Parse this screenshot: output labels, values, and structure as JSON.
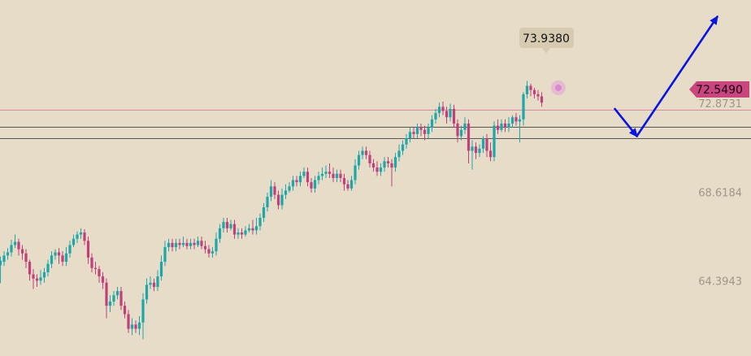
{
  "chart_data": {
    "type": "candlestick",
    "title": "",
    "xlabel": "",
    "ylabel": "",
    "ylim": [
      60.8,
      77.8
    ],
    "y_ticks": [
      "72.8731",
      "68.6184",
      "64.3943"
    ],
    "current_price": "72.5490",
    "high_label": "73.9380",
    "horizontal_lines": [
      {
        "value": 72.55,
        "color": "#d98aa3"
      },
      {
        "value": 71.75,
        "color": "#555555"
      },
      {
        "value": 71.2,
        "color": "#555555"
      }
    ],
    "projection": {
      "color": "#0a14e0",
      "points": [
        [
          168,
          72.6
        ],
        [
          174,
          71.3
        ],
        [
          196,
          77.0
        ]
      ]
    },
    "colors": {
      "up": "#1ea7a8",
      "down": "#c0407a"
    },
    "candles": [
      [
        0,
        65.13,
        65.35,
        65.55,
        64.28
      ],
      [
        1,
        65.3,
        65.6,
        65.8,
        65.1
      ],
      [
        2,
        65.6,
        65.75,
        65.95,
        65.4
      ],
      [
        3,
        65.75,
        66.1,
        66.35,
        65.55
      ],
      [
        4,
        66.1,
        66.25,
        66.6,
        65.95
      ],
      [
        5,
        66.25,
        65.9,
        66.4,
        65.6
      ],
      [
        6,
        65.9,
        65.7,
        66.1,
        65.4
      ],
      [
        7,
        65.7,
        65.3,
        65.9,
        65.0
      ],
      [
        8,
        65.3,
        64.7,
        65.4,
        64.4
      ],
      [
        9,
        64.7,
        64.5,
        64.95,
        64.0
      ],
      [
        10,
        64.5,
        64.4,
        64.7,
        64.1
      ],
      [
        11,
        64.4,
        64.55,
        64.9,
        64.2
      ],
      [
        12,
        64.55,
        64.8,
        65.0,
        64.3
      ],
      [
        13,
        64.8,
        65.2,
        65.4,
        64.6
      ],
      [
        14,
        65.2,
        65.6,
        65.8,
        65.0
      ],
      [
        15,
        65.6,
        65.75,
        65.9,
        65.4
      ],
      [
        16,
        65.75,
        65.6,
        65.95,
        65.2
      ],
      [
        17,
        65.6,
        65.3,
        65.8,
        65.1
      ],
      [
        18,
        65.3,
        65.7,
        66.0,
        65.1
      ],
      [
        19,
        65.7,
        66.1,
        66.3,
        65.5
      ],
      [
        20,
        66.1,
        66.4,
        66.6,
        66.0
      ],
      [
        21,
        66.4,
        66.6,
        66.75,
        66.2
      ],
      [
        22,
        66.6,
        66.7,
        66.9,
        66.4
      ],
      [
        23,
        66.7,
        66.3,
        66.85,
        66.1
      ],
      [
        24,
        66.3,
        65.5,
        66.5,
        65.2
      ],
      [
        25,
        65.5,
        65.0,
        65.7,
        64.8
      ],
      [
        26,
        65.0,
        64.95,
        65.3,
        64.7
      ],
      [
        27,
        64.95,
        64.6,
        65.1,
        64.3
      ],
      [
        28,
        64.6,
        64.3,
        64.8,
        64.0
      ],
      [
        29,
        64.3,
        63.2,
        64.5,
        62.6
      ],
      [
        30,
        63.2,
        63.4,
        63.7,
        62.9
      ],
      [
        31,
        63.4,
        63.7,
        63.9,
        63.2
      ],
      [
        32,
        63.7,
        63.9,
        64.1,
        63.5
      ],
      [
        33,
        63.9,
        63.2,
        64.1,
        63.0
      ],
      [
        34,
        63.2,
        62.8,
        63.4,
        62.6
      ],
      [
        35,
        62.8,
        62.1,
        63.0,
        61.9
      ],
      [
        36,
        62.1,
        62.3,
        62.6,
        61.8
      ],
      [
        37,
        62.3,
        62.1,
        62.5,
        61.9
      ],
      [
        38,
        62.1,
        62.4,
        62.7,
        61.8
      ],
      [
        39,
        62.4,
        63.5,
        63.8,
        61.6
      ],
      [
        40,
        63.5,
        64.2,
        64.5,
        63.3
      ],
      [
        41,
        64.2,
        64.3,
        64.6,
        64.0
      ],
      [
        42,
        64.3,
        64.1,
        64.5,
        63.9
      ],
      [
        43,
        64.1,
        64.6,
        64.9,
        63.9
      ],
      [
        44,
        64.6,
        65.3,
        65.6,
        64.4
      ],
      [
        45,
        65.3,
        66.0,
        66.3,
        65.1
      ],
      [
        46,
        66.0,
        66.2,
        66.4,
        65.8
      ],
      [
        47,
        66.2,
        66.0,
        66.4,
        65.8
      ],
      [
        48,
        66.0,
        66.2,
        66.4,
        65.8
      ],
      [
        49,
        66.2,
        66.1,
        66.4,
        65.9
      ],
      [
        50,
        66.1,
        66.2,
        66.5,
        66.0
      ],
      [
        51,
        66.2,
        66.05,
        66.4,
        65.9
      ],
      [
        52,
        66.05,
        66.2,
        66.4,
        65.9
      ],
      [
        53,
        66.2,
        66.1,
        66.4,
        65.9
      ],
      [
        54,
        66.1,
        66.3,
        66.5,
        66.0
      ],
      [
        55,
        66.3,
        66.05,
        66.5,
        65.9
      ],
      [
        56,
        66.05,
        65.9,
        66.3,
        65.7
      ],
      [
        57,
        65.9,
        65.7,
        66.1,
        65.5
      ],
      [
        58,
        65.7,
        65.8,
        66.0,
        65.5
      ],
      [
        59,
        65.8,
        66.4,
        66.7,
        65.6
      ],
      [
        60,
        66.4,
        66.9,
        67.1,
        66.2
      ],
      [
        61,
        66.9,
        67.2,
        67.4,
        66.7
      ],
      [
        62,
        67.2,
        66.9,
        67.4,
        66.7
      ],
      [
        63,
        66.9,
        67.1,
        67.3,
        66.8
      ],
      [
        64,
        67.1,
        66.6,
        67.3,
        66.4
      ],
      [
        65,
        66.6,
        66.7,
        66.9,
        66.4
      ],
      [
        66,
        66.7,
        66.6,
        66.9,
        66.4
      ],
      [
        67,
        66.6,
        66.8,
        67.0,
        66.5
      ],
      [
        68,
        66.8,
        66.9,
        67.1,
        66.7
      ],
      [
        69,
        66.9,
        66.8,
        67.3,
        66.6
      ],
      [
        70,
        66.8,
        67.0,
        67.4,
        66.6
      ],
      [
        71,
        67.0,
        67.4,
        67.6,
        66.8
      ],
      [
        72,
        67.4,
        67.9,
        68.1,
        67.2
      ],
      [
        73,
        67.9,
        68.4,
        68.6,
        67.7
      ],
      [
        74,
        68.4,
        68.9,
        69.2,
        68.2
      ],
      [
        75,
        68.9,
        68.5,
        69.1,
        68.3
      ],
      [
        76,
        68.5,
        68.0,
        68.7,
        67.8
      ],
      [
        77,
        68.0,
        68.5,
        68.8,
        67.8
      ],
      [
        78,
        68.5,
        68.7,
        69.0,
        68.3
      ],
      [
        79,
        68.7,
        68.9,
        69.1,
        68.6
      ],
      [
        80,
        68.9,
        69.2,
        69.4,
        68.7
      ],
      [
        81,
        69.2,
        69.1,
        69.4,
        68.9
      ],
      [
        82,
        69.1,
        69.4,
        69.6,
        68.9
      ],
      [
        83,
        69.4,
        69.6,
        69.8,
        69.3
      ],
      [
        84,
        69.6,
        69.1,
        69.8,
        68.9
      ],
      [
        85,
        69.1,
        68.8,
        69.3,
        68.6
      ],
      [
        86,
        68.8,
        69.2,
        69.4,
        68.6
      ],
      [
        87,
        69.2,
        69.4,
        69.6,
        69.0
      ],
      [
        88,
        69.4,
        69.5,
        69.8,
        69.2
      ],
      [
        89,
        69.5,
        69.6,
        69.9,
        69.3
      ],
      [
        90,
        69.6,
        69.5,
        70.0,
        69.3
      ],
      [
        91,
        69.5,
        69.3,
        69.8,
        69.1
      ],
      [
        92,
        69.3,
        69.5,
        69.7,
        69.1
      ],
      [
        93,
        69.5,
        69.3,
        69.7,
        69.1
      ],
      [
        94,
        69.3,
        69.0,
        69.5,
        68.7
      ],
      [
        95,
        69.0,
        68.8,
        69.2,
        68.7
      ],
      [
        96,
        68.8,
        69.2,
        69.4,
        68.7
      ],
      [
        97,
        69.2,
        69.9,
        70.2,
        69.0
      ],
      [
        98,
        69.9,
        70.4,
        70.6,
        69.7
      ],
      [
        99,
        70.4,
        70.6,
        70.8,
        70.2
      ],
      [
        100,
        70.6,
        70.4,
        70.8,
        70.2
      ],
      [
        101,
        70.4,
        70.0,
        70.6,
        69.8
      ],
      [
        102,
        70.0,
        69.8,
        70.2,
        69.6
      ],
      [
        103,
        69.8,
        69.6,
        70.1,
        69.4
      ],
      [
        104,
        69.6,
        69.8,
        70.0,
        69.4
      ],
      [
        105,
        69.8,
        70.1,
        70.3,
        69.6
      ],
      [
        106,
        70.1,
        70.0,
        70.3,
        69.8
      ],
      [
        107,
        70.0,
        69.8,
        70.2,
        68.9
      ],
      [
        108,
        69.8,
        70.3,
        70.5,
        69.6
      ],
      [
        109,
        70.3,
        70.6,
        70.9,
        70.1
      ],
      [
        110,
        70.6,
        70.9,
        71.1,
        70.4
      ],
      [
        111,
        70.9,
        71.2,
        71.4,
        70.7
      ],
      [
        112,
        71.2,
        71.5,
        71.7,
        71.0
      ],
      [
        113,
        71.5,
        71.4,
        71.7,
        71.2
      ],
      [
        114,
        71.4,
        71.7,
        71.9,
        71.2
      ],
      [
        115,
        71.7,
        71.6,
        71.9,
        71.3
      ],
      [
        116,
        71.6,
        71.4,
        71.8,
        71.1
      ],
      [
        117,
        71.4,
        71.7,
        71.9,
        71.2
      ],
      [
        118,
        71.7,
        72.1,
        72.3,
        71.5
      ],
      [
        119,
        72.1,
        72.4,
        72.6,
        71.9
      ],
      [
        120,
        72.4,
        72.7,
        72.9,
        72.2
      ],
      [
        121,
        72.7,
        72.5,
        72.95,
        72.3
      ],
      [
        122,
        72.5,
        72.2,
        72.7,
        71.9
      ],
      [
        123,
        72.2,
        72.6,
        72.85,
        72.0
      ],
      [
        124,
        72.6,
        71.9,
        72.8,
        71.7
      ],
      [
        125,
        71.9,
        71.3,
        72.1,
        71.0
      ],
      [
        126,
        71.3,
        71.6,
        71.8,
        71.1
      ],
      [
        127,
        71.6,
        71.9,
        72.2,
        71.4
      ],
      [
        128,
        71.9,
        70.6,
        72.1,
        70.0
      ],
      [
        129,
        70.6,
        70.8,
        71.1,
        69.7
      ],
      [
        130,
        70.8,
        70.5,
        71.0,
        70.2
      ],
      [
        131,
        70.5,
        70.7,
        70.9,
        70.3
      ],
      [
        132,
        70.7,
        71.2,
        71.3,
        70.5
      ],
      [
        133,
        71.2,
        70.6,
        71.4,
        70.3
      ],
      [
        134,
        70.6,
        70.3,
        71.0,
        70.1
      ],
      [
        135,
        70.3,
        71.8,
        72.0,
        70.1
      ],
      [
        136,
        71.8,
        71.6,
        72.1,
        71.4
      ],
      [
        137,
        71.6,
        71.9,
        72.1,
        71.5
      ],
      [
        138,
        71.9,
        71.7,
        72.1,
        71.5
      ],
      [
        139,
        71.7,
        71.9,
        72.2,
        71.5
      ],
      [
        140,
        71.9,
        72.2,
        72.3,
        71.7
      ],
      [
        141,
        72.2,
        72.0,
        72.4,
        71.8
      ],
      [
        142,
        72.0,
        72.1,
        72.3,
        71.0
      ],
      [
        143,
        72.1,
        73.3,
        73.4,
        71.8
      ],
      [
        144,
        73.3,
        73.7,
        73.94,
        73.1
      ],
      [
        145,
        73.7,
        73.5,
        73.8,
        73.2
      ],
      [
        146,
        73.5,
        73.3,
        73.6,
        73.1
      ],
      [
        147,
        73.3,
        73.2,
        73.5,
        73.0
      ],
      [
        148,
        73.2,
        72.9,
        73.4,
        72.7
      ]
    ]
  }
}
